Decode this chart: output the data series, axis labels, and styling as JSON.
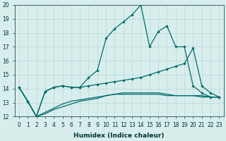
{
  "xlabel": "Humidex (Indice chaleur)",
  "background_color": "#d8eeed",
  "grid_color": "#b8d8d5",
  "line_color": "#006b6b",
  "xlim": [
    -0.5,
    23.5
  ],
  "ylim": [
    12,
    20
  ],
  "xticks": [
    0,
    1,
    2,
    3,
    4,
    5,
    6,
    7,
    8,
    9,
    10,
    11,
    12,
    13,
    14,
    15,
    16,
    17,
    18,
    19,
    20,
    21,
    22,
    23
  ],
  "yticks": [
    12,
    13,
    14,
    15,
    16,
    17,
    18,
    19,
    20
  ],
  "line1_x": [
    0,
    1,
    2,
    3,
    4,
    5,
    6,
    7,
    8,
    9,
    10,
    11,
    12,
    13,
    14,
    15,
    16,
    17,
    18,
    19,
    20,
    21,
    22,
    23
  ],
  "line1_y": [
    14.1,
    13.1,
    12.0,
    13.8,
    14.1,
    14.2,
    14.1,
    14.1,
    14.8,
    15.3,
    17.6,
    18.3,
    18.8,
    19.3,
    20.0,
    17.0,
    18.1,
    18.5,
    17.0,
    17.0,
    14.2,
    13.7,
    13.4,
    13.4
  ],
  "line2_x": [
    0,
    1,
    2,
    3,
    4,
    5,
    6,
    7,
    8,
    9,
    10,
    11,
    12,
    13,
    14,
    15,
    16,
    17,
    18,
    19,
    20,
    21,
    22,
    23
  ],
  "line2_y": [
    14.1,
    13.1,
    12.0,
    13.8,
    14.1,
    14.2,
    14.1,
    14.1,
    14.2,
    14.3,
    14.4,
    14.5,
    14.6,
    14.7,
    14.8,
    15.0,
    15.2,
    15.4,
    15.6,
    15.8,
    16.9,
    14.2,
    13.7,
    13.4
  ],
  "line3_x": [
    0,
    1,
    2,
    3,
    4,
    5,
    6,
    7,
    8,
    9,
    10,
    11,
    12,
    13,
    14,
    15,
    16,
    17,
    18,
    19,
    20,
    21,
    22,
    23
  ],
  "line3_y": [
    14.1,
    13.1,
    12.0,
    12.3,
    12.6,
    12.9,
    13.1,
    13.2,
    13.3,
    13.4,
    13.5,
    13.6,
    13.6,
    13.6,
    13.6,
    13.6,
    13.6,
    13.5,
    13.5,
    13.5,
    13.5,
    13.5,
    13.4,
    13.4
  ],
  "line4_x": [
    0,
    1,
    2,
    3,
    4,
    5,
    6,
    7,
    8,
    9,
    10,
    11,
    12,
    13,
    14,
    15,
    16,
    17,
    18,
    19,
    20,
    21,
    22,
    23
  ],
  "line4_y": [
    14.1,
    13.1,
    12.0,
    12.2,
    12.5,
    12.7,
    12.9,
    13.1,
    13.2,
    13.3,
    13.5,
    13.6,
    13.7,
    13.7,
    13.7,
    13.7,
    13.7,
    13.6,
    13.5,
    13.5,
    13.5,
    13.4,
    13.4,
    13.4
  ],
  "xlabel_fontsize": 6.5,
  "tick_fontsize": 5.5
}
